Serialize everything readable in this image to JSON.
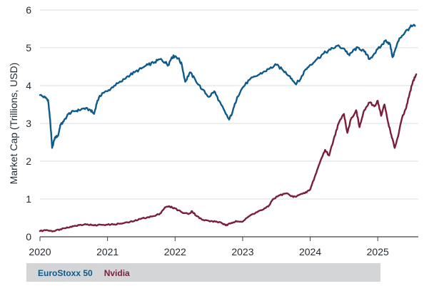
{
  "chart_data": {
    "type": "line",
    "title": "",
    "xlabel": "",
    "ylabel": "Market Cap (Trillions, USD)",
    "xlim": [
      2020.0,
      2025.6
    ],
    "ylim": [
      0,
      6
    ],
    "x_ticks": [
      {
        "value": 2020,
        "label": "2020"
      },
      {
        "value": 2021,
        "label": "2021"
      },
      {
        "value": 2022,
        "label": "2022"
      },
      {
        "value": 2023,
        "label": "2023"
      },
      {
        "value": 2024,
        "label": "2024"
      },
      {
        "value": 2025,
        "label": "2025"
      }
    ],
    "y_ticks": [
      {
        "value": 0,
        "label": "0"
      },
      {
        "value": 1,
        "label": "1"
      },
      {
        "value": 2,
        "label": "2"
      },
      {
        "value": 3,
        "label": "3"
      },
      {
        "value": 4,
        "label": "4"
      },
      {
        "value": 5,
        "label": "5"
      },
      {
        "value": 6,
        "label": "6"
      }
    ],
    "grid": "horizontal",
    "legend": "bottom-left",
    "series": [
      {
        "name": "EuroStoxx 50",
        "color": "#0e5a8a",
        "points": [
          [
            2020.0,
            3.75
          ],
          [
            2020.08,
            3.68
          ],
          [
            2020.12,
            3.62
          ],
          [
            2020.15,
            3.1
          ],
          [
            2020.18,
            2.35
          ],
          [
            2020.22,
            2.62
          ],
          [
            2020.27,
            2.68
          ],
          [
            2020.3,
            2.95
          ],
          [
            2020.35,
            3.05
          ],
          [
            2020.42,
            3.25
          ],
          [
            2020.5,
            3.32
          ],
          [
            2020.58,
            3.35
          ],
          [
            2020.65,
            3.4
          ],
          [
            2020.75,
            3.35
          ],
          [
            2020.8,
            3.25
          ],
          [
            2020.85,
            3.6
          ],
          [
            2020.92,
            3.8
          ],
          [
            2021.0,
            3.85
          ],
          [
            2021.1,
            4.0
          ],
          [
            2021.2,
            4.1
          ],
          [
            2021.3,
            4.25
          ],
          [
            2021.4,
            4.35
          ],
          [
            2021.5,
            4.45
          ],
          [
            2021.6,
            4.55
          ],
          [
            2021.7,
            4.62
          ],
          [
            2021.78,
            4.7
          ],
          [
            2021.85,
            4.62
          ],
          [
            2021.9,
            4.55
          ],
          [
            2021.95,
            4.75
          ],
          [
            2022.0,
            4.78
          ],
          [
            2022.05,
            4.72
          ],
          [
            2022.1,
            4.55
          ],
          [
            2022.15,
            4.1
          ],
          [
            2022.22,
            4.35
          ],
          [
            2022.3,
            4.15
          ],
          [
            2022.4,
            3.9
          ],
          [
            2022.5,
            3.7
          ],
          [
            2022.58,
            3.85
          ],
          [
            2022.65,
            3.6
          ],
          [
            2022.75,
            3.25
          ],
          [
            2022.8,
            3.1
          ],
          [
            2022.85,
            3.3
          ],
          [
            2022.92,
            3.7
          ],
          [
            2023.0,
            3.95
          ],
          [
            2023.1,
            4.15
          ],
          [
            2023.2,
            4.25
          ],
          [
            2023.3,
            4.35
          ],
          [
            2023.4,
            4.45
          ],
          [
            2023.5,
            4.55
          ],
          [
            2023.6,
            4.4
          ],
          [
            2023.7,
            4.25
          ],
          [
            2023.78,
            4.05
          ],
          [
            2023.85,
            4.15
          ],
          [
            2023.92,
            4.4
          ],
          [
            2024.0,
            4.55
          ],
          [
            2024.1,
            4.7
          ],
          [
            2024.2,
            4.85
          ],
          [
            2024.3,
            4.95
          ],
          [
            2024.4,
            5.05
          ],
          [
            2024.5,
            4.98
          ],
          [
            2024.58,
            4.8
          ],
          [
            2024.65,
            4.95
          ],
          [
            2024.72,
            5.0
          ],
          [
            2024.8,
            4.9
          ],
          [
            2024.88,
            4.7
          ],
          [
            2024.95,
            4.85
          ],
          [
            2025.05,
            5.05
          ],
          [
            2025.12,
            5.2
          ],
          [
            2025.18,
            5.1
          ],
          [
            2025.22,
            4.75
          ],
          [
            2025.25,
            4.9
          ],
          [
            2025.32,
            5.25
          ],
          [
            2025.4,
            5.4
          ],
          [
            2025.48,
            5.55
          ],
          [
            2025.55,
            5.58
          ]
        ]
      },
      {
        "name": "Nvidia",
        "color": "#7a1f3a",
        "points": [
          [
            2020.0,
            0.15
          ],
          [
            2020.1,
            0.18
          ],
          [
            2020.2,
            0.15
          ],
          [
            2020.3,
            0.2
          ],
          [
            2020.4,
            0.25
          ],
          [
            2020.5,
            0.28
          ],
          [
            2020.6,
            0.32
          ],
          [
            2020.7,
            0.33
          ],
          [
            2020.8,
            0.3
          ],
          [
            2020.9,
            0.32
          ],
          [
            2021.0,
            0.32
          ],
          [
            2021.1,
            0.33
          ],
          [
            2021.2,
            0.35
          ],
          [
            2021.3,
            0.38
          ],
          [
            2021.4,
            0.42
          ],
          [
            2021.5,
            0.48
          ],
          [
            2021.6,
            0.52
          ],
          [
            2021.7,
            0.55
          ],
          [
            2021.78,
            0.62
          ],
          [
            2021.85,
            0.78
          ],
          [
            2021.92,
            0.8
          ],
          [
            2022.0,
            0.75
          ],
          [
            2022.1,
            0.65
          ],
          [
            2022.2,
            0.6
          ],
          [
            2022.25,
            0.68
          ],
          [
            2022.32,
            0.55
          ],
          [
            2022.4,
            0.45
          ],
          [
            2022.5,
            0.42
          ],
          [
            2022.6,
            0.4
          ],
          [
            2022.68,
            0.38
          ],
          [
            2022.75,
            0.3
          ],
          [
            2022.82,
            0.35
          ],
          [
            2022.9,
            0.42
          ],
          [
            2023.0,
            0.4
          ],
          [
            2023.1,
            0.55
          ],
          [
            2023.2,
            0.65
          ],
          [
            2023.3,
            0.72
          ],
          [
            2023.38,
            0.8
          ],
          [
            2023.45,
            1.0
          ],
          [
            2023.55,
            1.1
          ],
          [
            2023.65,
            1.15
          ],
          [
            2023.75,
            1.05
          ],
          [
            2023.82,
            1.1
          ],
          [
            2023.92,
            1.15
          ],
          [
            2024.0,
            1.25
          ],
          [
            2024.08,
            1.65
          ],
          [
            2024.15,
            2.0
          ],
          [
            2024.22,
            2.3
          ],
          [
            2024.28,
            2.15
          ],
          [
            2024.35,
            2.6
          ],
          [
            2024.42,
            3.0
          ],
          [
            2024.5,
            3.25
          ],
          [
            2024.55,
            2.75
          ],
          [
            2024.6,
            3.1
          ],
          [
            2024.68,
            3.35
          ],
          [
            2024.73,
            2.9
          ],
          [
            2024.8,
            3.35
          ],
          [
            2024.88,
            3.55
          ],
          [
            2024.95,
            3.45
          ],
          [
            2025.0,
            3.6
          ],
          [
            2025.05,
            3.2
          ],
          [
            2025.1,
            3.5
          ],
          [
            2025.15,
            3.05
          ],
          [
            2025.2,
            2.7
          ],
          [
            2025.25,
            2.35
          ],
          [
            2025.3,
            2.65
          ],
          [
            2025.36,
            3.15
          ],
          [
            2025.42,
            3.4
          ],
          [
            2025.48,
            3.85
          ],
          [
            2025.53,
            4.15
          ],
          [
            2025.57,
            4.3
          ]
        ]
      }
    ]
  }
}
